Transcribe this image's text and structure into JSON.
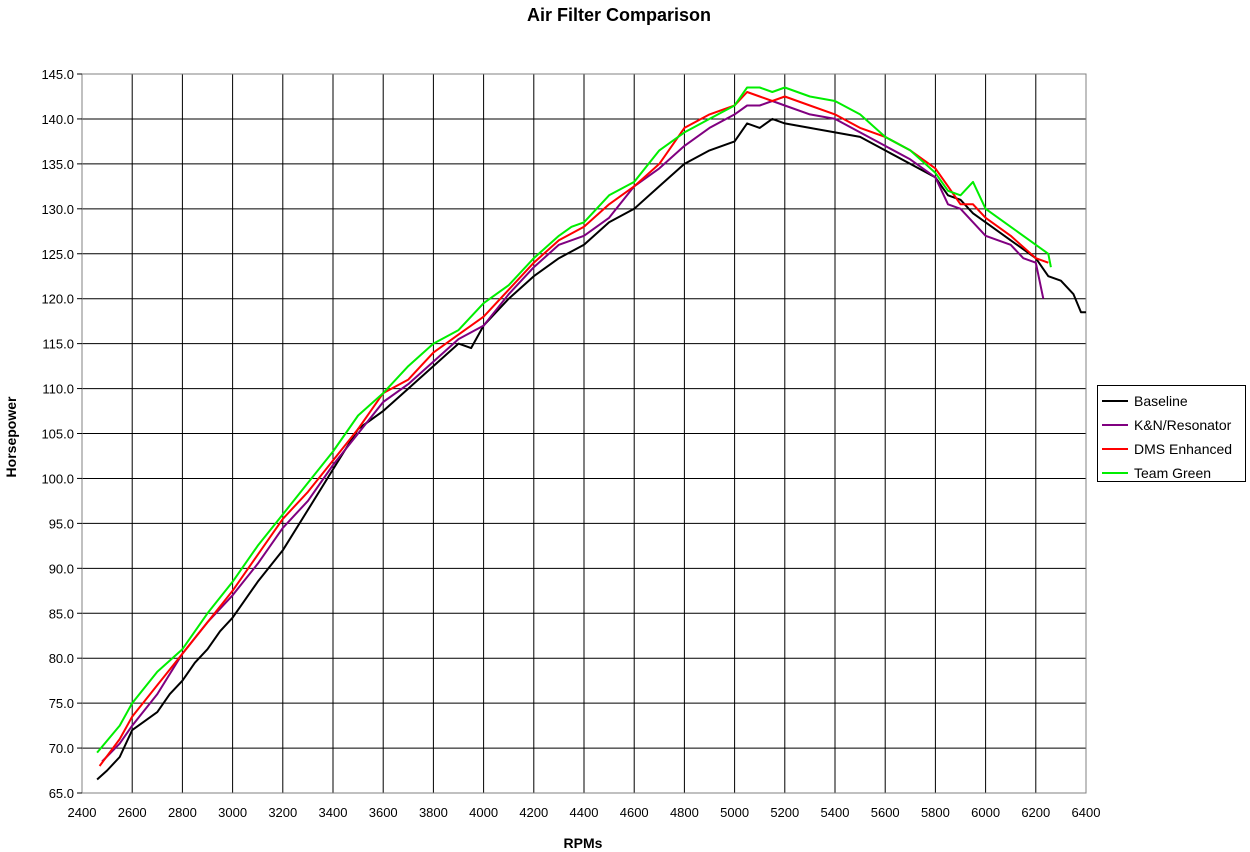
{
  "chart_data": {
    "type": "line",
    "title": "Air Filter Comparison",
    "xlabel": "RPMs",
    "ylabel": "Horsepower",
    "xlim": [
      2400,
      6400
    ],
    "ylim": [
      65.0,
      145.0
    ],
    "x_ticks": [
      "2400",
      "2600",
      "2800",
      "3000",
      "3200",
      "3400",
      "3600",
      "3800",
      "4000",
      "4200",
      "4400",
      "4600",
      "4800",
      "5000",
      "5200",
      "5400",
      "5600",
      "5800",
      "6000",
      "6200",
      "6400"
    ],
    "y_ticks": [
      "65.0",
      "70.0",
      "75.0",
      "80.0",
      "85.0",
      "90.0",
      "95.0",
      "100.0",
      "105.0",
      "110.0",
      "115.0",
      "120.0",
      "125.0",
      "130.0",
      "135.0",
      "140.0",
      "145.0"
    ],
    "grid": true,
    "legend_position": "right",
    "series": [
      {
        "name": "Baseline",
        "color": "#000000",
        "x": [
          2460,
          2500,
          2550,
          2600,
          2650,
          2700,
          2750,
          2800,
          2850,
          2900,
          2950,
          3000,
          3100,
          3200,
          3300,
          3400,
          3500,
          3600,
          3700,
          3800,
          3900,
          3950,
          4000,
          4100,
          4200,
          4300,
          4400,
          4500,
          4600,
          4700,
          4800,
          4900,
          5000,
          5050,
          5100,
          5150,
          5200,
          5300,
          5400,
          5500,
          5600,
          5700,
          5800,
          5850,
          5900,
          5950,
          6000,
          6100,
          6200,
          6250,
          6300,
          6350,
          6380,
          6400
        ],
        "y": [
          66.5,
          67.5,
          69.0,
          72.0,
          73.0,
          74.0,
          76.0,
          77.5,
          79.5,
          81.0,
          83.0,
          84.5,
          88.5,
          92.0,
          96.5,
          101.0,
          105.5,
          107.5,
          110.0,
          112.5,
          115.0,
          114.5,
          117.0,
          120.0,
          122.5,
          124.5,
          126.0,
          128.5,
          130.0,
          132.5,
          135.0,
          136.5,
          137.5,
          139.5,
          139.0,
          140.0,
          139.5,
          139.0,
          138.5,
          138.0,
          136.5,
          135.0,
          133.5,
          131.5,
          131.0,
          129.5,
          128.5,
          126.5,
          124.5,
          122.5,
          122.0,
          120.5,
          118.5,
          118.5
        ]
      },
      {
        "name": "K&N/Resonator",
        "color": "#800080",
        "x": [
          2480,
          2550,
          2600,
          2700,
          2800,
          2900,
          3000,
          3100,
          3200,
          3300,
          3400,
          3500,
          3600,
          3700,
          3800,
          3900,
          4000,
          4100,
          4200,
          4300,
          4400,
          4500,
          4600,
          4700,
          4800,
          4900,
          5000,
          5050,
          5100,
          5150,
          5200,
          5300,
          5400,
          5500,
          5600,
          5700,
          5800,
          5850,
          5900,
          6000,
          6050,
          6100,
          6150,
          6200,
          6230
        ],
        "y": [
          68.5,
          70.5,
          72.5,
          76.0,
          80.5,
          84.0,
          87.0,
          90.5,
          94.5,
          97.5,
          101.5,
          105.0,
          108.5,
          110.5,
          113.0,
          115.5,
          117.0,
          120.5,
          123.5,
          126.0,
          127.0,
          129.0,
          132.5,
          134.5,
          137.0,
          139.0,
          140.5,
          141.5,
          141.5,
          142.0,
          141.5,
          140.5,
          140.0,
          138.5,
          137.0,
          135.5,
          133.5,
          130.5,
          130.0,
          127.0,
          126.5,
          126.0,
          124.5,
          124.0,
          120.0
        ]
      },
      {
        "name": "DMS Enhanced",
        "color": "#ff0000",
        "x": [
          2470,
          2550,
          2600,
          2700,
          2800,
          2900,
          3000,
          3100,
          3200,
          3300,
          3400,
          3500,
          3600,
          3700,
          3800,
          3900,
          4000,
          4100,
          4200,
          4300,
          4400,
          4500,
          4600,
          4700,
          4800,
          4900,
          5000,
          5050,
          5100,
          5150,
          5200,
          5300,
          5400,
          5500,
          5600,
          5700,
          5800,
          5850,
          5900,
          5950,
          6000,
          6100,
          6200,
          6250
        ],
        "y": [
          68.0,
          71.0,
          73.5,
          77.0,
          80.5,
          84.0,
          87.5,
          91.5,
          95.5,
          98.5,
          102.0,
          105.5,
          109.5,
          111.0,
          114.0,
          116.0,
          118.0,
          121.0,
          124.0,
          126.5,
          128.0,
          130.5,
          132.5,
          135.0,
          139.0,
          140.5,
          141.5,
          143.0,
          142.5,
          142.0,
          142.5,
          141.5,
          140.5,
          139.0,
          138.0,
          136.5,
          134.5,
          132.5,
          130.5,
          130.5,
          129.0,
          127.0,
          124.5,
          124.0
        ]
      },
      {
        "name": "Team Green",
        "color": "#00ee00",
        "x": [
          2460,
          2550,
          2600,
          2700,
          2800,
          2900,
          3000,
          3100,
          3200,
          3300,
          3400,
          3500,
          3600,
          3700,
          3800,
          3900,
          4000,
          4100,
          4200,
          4300,
          4350,
          4400,
          4500,
          4600,
          4700,
          4800,
          4900,
          5000,
          5050,
          5100,
          5150,
          5200,
          5300,
          5400,
          5500,
          5600,
          5700,
          5800,
          5850,
          5900,
          5950,
          6000,
          6100,
          6200,
          6250,
          6260
        ],
        "y": [
          69.5,
          72.5,
          75.0,
          78.5,
          81.0,
          85.0,
          88.5,
          92.5,
          96.0,
          99.5,
          103.0,
          107.0,
          109.5,
          112.5,
          115.0,
          116.5,
          119.5,
          121.5,
          124.5,
          127.0,
          128.0,
          128.5,
          131.5,
          133.0,
          136.5,
          138.5,
          140.0,
          141.5,
          143.5,
          143.5,
          143.0,
          143.5,
          142.5,
          142.0,
          140.5,
          138.0,
          136.5,
          134.0,
          132.0,
          131.5,
          133.0,
          130.0,
          128.0,
          126.0,
          125.0,
          123.5
        ]
      }
    ]
  }
}
